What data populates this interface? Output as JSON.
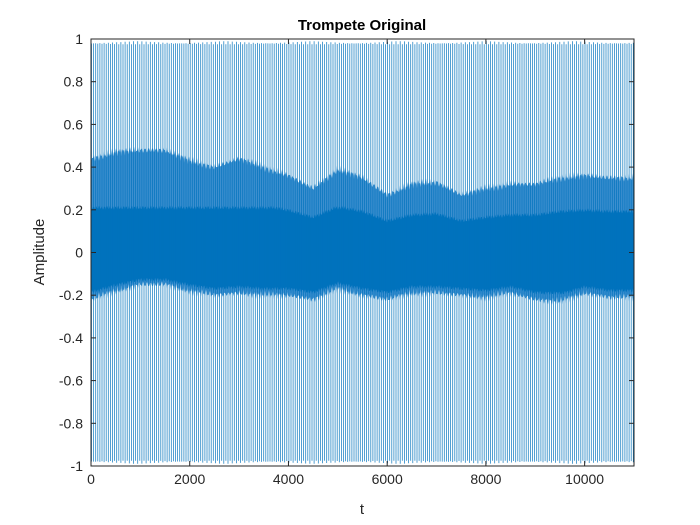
{
  "chart_data": {
    "type": "line",
    "title": "Trompete Original",
    "xlabel": "t",
    "ylabel": "Amplitude",
    "xlim": [
      0,
      11000
    ],
    "ylim": [
      -1,
      1
    ],
    "xticks": [
      "0",
      "2000",
      "4000",
      "6000",
      "8000",
      "10000"
    ],
    "yticks": [
      "1",
      "0.8",
      "0.6",
      "0.4",
      "0.2",
      "0",
      "-0.2",
      "-0.4",
      "-0.6",
      "-0.8",
      "-1"
    ],
    "xtick_values": [
      0,
      2000,
      4000,
      6000,
      8000,
      10000
    ],
    "ytick_values": [
      1,
      0.8,
      0.6,
      0.4,
      0.2,
      0,
      -0.2,
      -0.4,
      -0.6,
      -0.8,
      -1
    ],
    "grid": false,
    "series": [
      {
        "color": "#0072BD",
        "peak_amplitude": 0.99,
        "envelope_t": [
          0,
          500,
          1000,
          1500,
          2000,
          2500,
          3000,
          3500,
          4000,
          4500,
          5000,
          5500,
          6000,
          6500,
          7000,
          7500,
          8000,
          8500,
          9000,
          9500,
          10000,
          10500,
          11000
        ],
        "envelope_upper": [
          0.44,
          0.47,
          0.48,
          0.48,
          0.43,
          0.4,
          0.44,
          0.4,
          0.36,
          0.3,
          0.39,
          0.35,
          0.27,
          0.32,
          0.33,
          0.27,
          0.3,
          0.32,
          0.32,
          0.35,
          0.36,
          0.35,
          0.35
        ],
        "envelope_lower": [
          -0.22,
          -0.18,
          -0.15,
          -0.15,
          -0.18,
          -0.2,
          -0.19,
          -0.2,
          -0.2,
          -0.22,
          -0.17,
          -0.2,
          -0.22,
          -0.19,
          -0.19,
          -0.2,
          -0.21,
          -0.19,
          -0.22,
          -0.23,
          -0.19,
          -0.21,
          -0.21
        ]
      }
    ]
  }
}
